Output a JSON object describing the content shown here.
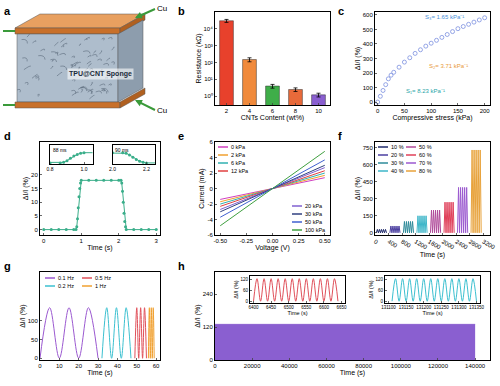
{
  "chart_data": [
    {
      "type": "diagram",
      "title": "a",
      "labels": {
        "top": "Cu",
        "body": "TPU@CNT Sponge",
        "bottom": "Cu"
      }
    },
    {
      "type": "bar",
      "title": "b",
      "xlabel": "CNTs Content (wt%)",
      "ylabel": "Resistance (kΩ)",
      "categories": [
        "2",
        "4",
        "6",
        "8",
        "10"
      ],
      "values": [
        30000,
        150,
        4,
        2.5,
        1.2
      ],
      "errors": [
        6000,
        40,
        1,
        0.6,
        0.3
      ],
      "colors": [
        "#e8412c",
        "#f08a3c",
        "#3fae49",
        "#e86a3a",
        "#8a5fd0"
      ],
      "log": "y",
      "ylim": [
        0.3,
        100000
      ],
      "yticks": [
        {
          "value": 1,
          "label": "10⁰"
        },
        {
          "value": 10,
          "label": "10¹"
        },
        {
          "value": 100,
          "label": "10²"
        },
        {
          "value": 1000,
          "label": "10³"
        },
        {
          "value": 10000,
          "label": "10⁴"
        }
      ]
    },
    {
      "type": "scatter",
      "title": "c",
      "xlabel": "Compressive stress (kPa)",
      "ylabel": "ΔI/I (%)",
      "x": [
        0,
        5,
        10,
        15,
        20,
        25,
        30,
        40,
        50,
        60,
        70,
        80,
        90,
        100,
        110,
        120,
        130,
        140,
        150,
        160,
        170,
        180,
        190,
        200
      ],
      "values": [
        0,
        40,
        80,
        120,
        160,
        185,
        205,
        240,
        275,
        305,
        335,
        360,
        385,
        405,
        425,
        445,
        465,
        485,
        505,
        520,
        535,
        550,
        565,
        580
      ],
      "color": "#7b8fe0",
      "marker": "circle-open",
      "xlim": [
        -5,
        210
      ],
      "xticks": [
        0,
        50,
        100,
        150,
        200
      ],
      "ylim": [
        -20,
        620
      ],
      "yticks": [
        0,
        100,
        200,
        300,
        400,
        500,
        600
      ],
      "annotations": [
        {
          "text": "S₃= 1.65 kPa⁻¹",
          "color": "#4a90d9"
        },
        {
          "text": "S₂= 3.71 kPa⁻¹",
          "color": "#e89a3a"
        },
        {
          "text": "S₁= 8.23 kPa⁻¹",
          "color": "#2aa5a8"
        }
      ]
    },
    {
      "type": "line",
      "title": "d",
      "xlabel": "Time (s)",
      "ylabel": "ΔI/I (%)",
      "x": [
        0,
        0.2,
        0.4,
        0.6,
        0.8,
        0.86,
        0.88,
        0.9,
        0.92,
        0.94,
        0.96,
        0.98,
        1.0,
        1.2,
        1.4,
        1.6,
        1.8,
        2.0,
        2.06,
        2.08,
        2.1,
        2.12,
        2.14,
        2.16,
        2.18,
        2.2,
        2.4,
        2.6,
        2.8,
        3.0
      ],
      "values": [
        0,
        0,
        0,
        0,
        0,
        0,
        1,
        4,
        8,
        12,
        15,
        17,
        18,
        18,
        18,
        18,
        18,
        18,
        18,
        17,
        14,
        10,
        6,
        3,
        1,
        0,
        0,
        0,
        0,
        0
      ],
      "color": "#3aae8a",
      "marker": "circle",
      "line_style": "solid",
      "xlim": [
        -0.1,
        3.1
      ],
      "xticks": [
        0,
        1,
        2,
        3
      ],
      "ylim": [
        -2,
        32
      ],
      "yticks": [
        0,
        5,
        10,
        15,
        20
      ],
      "insets": [
        {
          "text": "88 ms",
          "xlim": [
            0.8,
            1.05
          ],
          "xticks": [
            0.8,
            {
              "value": 1,
              "label": "1.0"
            }
          ],
          "tick_labels": "x"
        },
        {
          "text": "90 ms",
          "xlim": [
            2.0,
            2.25
          ],
          "xticks": [
            {
              "value": 2,
              "label": "2.0"
            },
            2.2
          ],
          "tick_labels": "x"
        }
      ]
    },
    {
      "type": "line",
      "title": "e",
      "xlabel": "Voltage (V)",
      "ylabel": "Current (mA)",
      "x": [
        -0.5,
        0.5
      ],
      "series": [
        {
          "name": "0 kPa",
          "color": "#d040c0",
          "values": [
            -1.4,
            1.4
          ]
        },
        {
          "name": "2 kPa",
          "color": "#f0a030",
          "values": [
            -1.7,
            1.7
          ]
        },
        {
          "name": "6 kPa",
          "color": "#30b0b0",
          "values": [
            -2.0,
            2.0
          ]
        },
        {
          "name": "12 kPa",
          "color": "#e04040",
          "values": [
            -2.3,
            2.3
          ]
        },
        {
          "name": "20 kPa",
          "color": "#8060d0",
          "values": [
            -2.7,
            2.7
          ]
        },
        {
          "name": "30 kPa",
          "color": "#304080",
          "values": [
            -3.0,
            3.0
          ]
        },
        {
          "name": "50 kPa",
          "color": "#4060d0",
          "values": [
            -3.7,
            3.7
          ]
        },
        {
          "name": "100 kPa",
          "color": "#40a040",
          "values": [
            -4.8,
            4.8
          ]
        }
      ],
      "xlim": [
        -0.55,
        0.55
      ],
      "xticks": [
        {
          "value": -0.5,
          "label": "-0.50"
        },
        {
          "value": -0.25,
          "label": "-0.25"
        },
        {
          "value": 0,
          "label": "0.00"
        },
        {
          "value": 0.25,
          "label": "0.25"
        },
        {
          "value": 0.5,
          "label": "0.50"
        }
      ],
      "ylim": [
        -6,
        6
      ],
      "yticks": [
        -6,
        -4,
        -2,
        0,
        2,
        4,
        6
      ]
    },
    {
      "type": "line",
      "title": "f",
      "xlabel": "Time (s)",
      "ylabel": "ΔI/I (%)",
      "series": [
        {
          "name": "10 %",
          "color": "#1f2a6b",
          "x": [
            40,
            70,
            100,
            130,
            160,
            190,
            220,
            250,
            280,
            310,
            340
          ],
          "values": [
            0,
            30,
            0,
            30,
            0,
            30,
            0,
            30,
            0,
            30,
            0
          ]
        },
        {
          "name": "20 %",
          "color": "#4b3fa0",
          "x": [
            440,
            470,
            500,
            530,
            560,
            590,
            620,
            650,
            680,
            710,
            740
          ],
          "values": [
            0,
            60,
            0,
            60,
            0,
            60,
            0,
            60,
            0,
            60,
            0
          ]
        },
        {
          "name": "30 %",
          "color": "#2e8b9a",
          "x": [
            840,
            870,
            900,
            930,
            960,
            990,
            1020,
            1050,
            1080,
            1110,
            1140
          ],
          "values": [
            0,
            100,
            0,
            100,
            0,
            100,
            0,
            100,
            0,
            100,
            0
          ]
        },
        {
          "name": "40 %",
          "color": "#3cb6c9",
          "x": [
            1240,
            1270,
            1300,
            1330,
            1360,
            1390,
            1420,
            1450,
            1480,
            1510,
            1540
          ],
          "values": [
            0,
            150,
            0,
            150,
            0,
            150,
            0,
            150,
            0,
            150,
            0
          ]
        },
        {
          "name": "50 %",
          "color": "#b04a9a",
          "x": [
            1640,
            1670,
            1700,
            1730,
            1760,
            1790,
            1820,
            1850,
            1880,
            1910,
            1940
          ],
          "values": [
            0,
            200,
            0,
            200,
            0,
            200,
            0,
            200,
            0,
            200,
            0
          ]
        },
        {
          "name": "60 %",
          "color": "#e0405a",
          "x": [
            2040,
            2070,
            2100,
            2130,
            2160,
            2190,
            2220,
            2250,
            2280,
            2310,
            2340
          ],
          "values": [
            0,
            270,
            0,
            270,
            0,
            270,
            0,
            270,
            0,
            270,
            0
          ]
        },
        {
          "name": "70 %",
          "color": "#9b59d0",
          "x": [
            2440,
            2470,
            2500,
            2530,
            2560,
            2590,
            2620,
            2650,
            2680,
            2710,
            2740
          ],
          "values": [
            0,
            400,
            0,
            400,
            0,
            400,
            0,
            400,
            0,
            400,
            0
          ]
        },
        {
          "name": "80 %",
          "color": "#e8a23a",
          "x": [
            2840,
            2870,
            2900,
            2930,
            2960,
            2990,
            3020,
            3050,
            3080,
            3110,
            3140
          ],
          "values": [
            0,
            730,
            0,
            730,
            0,
            730,
            0,
            730,
            0,
            730,
            0
          ]
        }
      ],
      "xlim": [
        0,
        3400
      ],
      "xticks": [
        0,
        400,
        800,
        1200,
        1600,
        2000,
        2400,
        2800,
        3200
      ],
      "ylim": [
        -20,
        800
      ],
      "yticks": [
        0,
        150,
        300,
        450,
        600,
        750
      ]
    },
    {
      "type": "line",
      "title": "g",
      "xlabel": "Time (s)",
      "ylabel": "ΔI/I (%)",
      "series": [
        {
          "name": "0.1 Hz",
          "color": "#9b59d0",
          "x": [
            0,
            5,
            10,
            15,
            20,
            25,
            30
          ],
          "values": [
            0,
            135,
            0,
            135,
            0,
            135,
            0
          ]
        },
        {
          "name": "0.2 Hz",
          "color": "#3cc0d0",
          "x": [
            32,
            34.5,
            37,
            39.5,
            42,
            44.5,
            47
          ],
          "values": [
            0,
            135,
            0,
            135,
            0,
            135,
            0
          ]
        },
        {
          "name": "0.5 Hz",
          "color": "#e0505a",
          "x": [
            49,
            50,
            51,
            52,
            53,
            54,
            55
          ],
          "values": [
            0,
            135,
            0,
            135,
            0,
            135,
            0
          ]
        },
        {
          "name": "1 Hz",
          "color": "#f0a030",
          "x": [
            56,
            56.5,
            57,
            57.5,
            58,
            58.5,
            59
          ],
          "values": [
            0,
            135,
            0,
            135,
            0,
            135,
            0
          ]
        }
      ],
      "xlim": [
        0,
        62
      ],
      "xticks": [
        0,
        10,
        20,
        30,
        40,
        50,
        60
      ],
      "ylim": [
        -5,
        230
      ],
      "yticks": [
        0,
        50,
        100
      ]
    },
    {
      "type": "line",
      "title": "h",
      "xlabel": "Time (s)",
      "ylabel": "ΔI/I (%)",
      "series": [
        {
          "type": "area",
          "color": "#8a5fd0",
          "x": [
            0,
            140000
          ],
          "values": [
            130,
            130
          ]
        }
      ],
      "xlim": [
        0,
        148000
      ],
      "xticks": [
        0,
        20000,
        40000,
        60000,
        80000,
        100000,
        120000,
        140000
      ],
      "ylim": [
        0,
        320
      ],
      "yticks": [
        0,
        120,
        240
      ],
      "insets": [
        {
          "xlabel": "Time (s)",
          "ylabel": "ΔI/I (%)",
          "color": "#e0505a",
          "x": [
            6400,
            6410,
            6420,
            6430,
            6440,
            6450,
            6460,
            6470,
            6480,
            6490,
            6500,
            6510,
            6520,
            6530,
            6540,
            6550,
            6560,
            6570,
            6580,
            6590,
            6600,
            6610,
            6620,
            6630,
            6640
          ],
          "values": [
            0,
            125,
            0,
            125,
            0,
            125,
            0,
            125,
            0,
            125,
            0,
            125,
            0,
            125,
            0,
            125,
            0,
            125,
            0,
            125,
            0,
            125,
            0,
            125,
            0
          ],
          "xlim": [
            6390,
            6660
          ],
          "xticks": [
            6400,
            6450,
            6500,
            6550,
            6600,
            6650
          ],
          "ylim": [
            -10,
            140
          ],
          "yticks": [
            0,
            60,
            120
          ]
        },
        {
          "xlabel": "Time (s)",
          "ylabel": "ΔI/I (%)",
          "color": "#3cc0d0",
          "x": [
            131110,
            131120,
            131130,
            131140,
            131150,
            131160,
            131170,
            131180,
            131190,
            131200,
            131210,
            131220,
            131230,
            131240,
            131250,
            131260,
            131270,
            131280,
            131290,
            131300,
            131310,
            131320,
            131330,
            131340,
            131350
          ],
          "values": [
            0,
            125,
            0,
            125,
            0,
            125,
            0,
            125,
            0,
            125,
            0,
            125,
            0,
            125,
            0,
            125,
            0,
            125,
            0,
            125,
            0,
            125,
            0,
            125,
            0
          ],
          "xlim": [
            131090,
            131360
          ],
          "xticks": [
            131100,
            131150,
            131200,
            131250,
            131300,
            131350
          ],
          "ylim": [
            -10,
            140
          ],
          "yticks": [
            0,
            60,
            120
          ]
        }
      ]
    }
  ]
}
